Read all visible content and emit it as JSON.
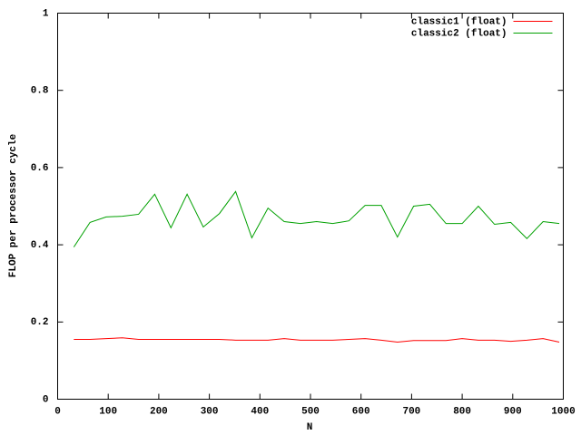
{
  "chart_data": {
    "type": "line",
    "x_label": "N",
    "y_label": "FLOP per processor cycle",
    "x": [
      32,
      64,
      96,
      128,
      160,
      192,
      224,
      256,
      288,
      320,
      352,
      384,
      416,
      448,
      480,
      512,
      544,
      576,
      608,
      640,
      672,
      704,
      736,
      768,
      800,
      832,
      864,
      896,
      928,
      960,
      992
    ],
    "series": [
      {
        "name": "classic1 (float)",
        "color": "#ff0000",
        "values": [
          0.155,
          0.155,
          0.157,
          0.159,
          0.155,
          0.155,
          0.155,
          0.155,
          0.155,
          0.155,
          0.153,
          0.153,
          0.153,
          0.157,
          0.153,
          0.153,
          0.153,
          0.155,
          0.157,
          0.153,
          0.148,
          0.152,
          0.152,
          0.152,
          0.157,
          0.153,
          0.153,
          0.15,
          0.153,
          0.157,
          0.148
        ]
      },
      {
        "name": "classic2 (float)",
        "color": "#00a000",
        "values": [
          0.394,
          0.458,
          0.472,
          0.474,
          0.479,
          0.531,
          0.444,
          0.531,
          0.446,
          0.481,
          0.538,
          0.418,
          0.495,
          0.46,
          0.455,
          0.46,
          0.455,
          0.462,
          0.502,
          0.502,
          0.42,
          0.5,
          0.505,
          0.455,
          0.455,
          0.5,
          0.453,
          0.458,
          0.416,
          0.46,
          0.455
        ]
      }
    ],
    "xlim": [
      0,
      1000
    ],
    "xticks": [
      0,
      100,
      200,
      300,
      400,
      500,
      600,
      700,
      800,
      900,
      1000
    ],
    "ylim": [
      0,
      1
    ],
    "yticks": [
      0,
      0.2,
      0.4,
      0.6,
      0.8,
      1
    ],
    "legend": "top-right"
  }
}
